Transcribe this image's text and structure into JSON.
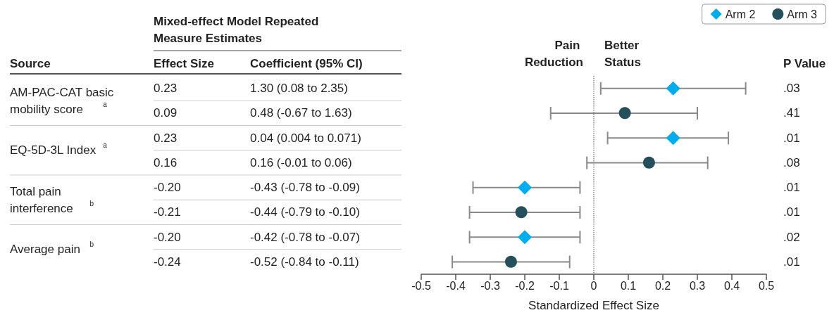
{
  "chart_data": {
    "type": "scatter",
    "orientation": "horizontal",
    "categories": [
      null,
      null,
      null,
      null,
      null,
      null,
      null,
      null
    ],
    "series": [
      {
        "name": "Arm 2",
        "color": "#00aeef",
        "marker": "diamond",
        "values": [
          0.23,
          null,
          0.23,
          null,
          -0.2,
          null,
          -0.2,
          null
        ],
        "errors": [
          [
            0.02,
            0.44
          ],
          null,
          [
            0.04,
            0.39
          ],
          null,
          [
            -0.35,
            -0.04
          ],
          null,
          [
            -0.36,
            -0.04
          ],
          null
        ]
      },
      {
        "name": "Arm 3",
        "color": "#24505c",
        "marker": "circle",
        "values": [
          null,
          0.09,
          null,
          0.16,
          null,
          -0.21,
          null,
          -0.24
        ],
        "errors": [
          null,
          [
            -0.125,
            0.3
          ],
          null,
          [
            -0.02,
            0.33
          ],
          null,
          [
            -0.36,
            -0.04
          ],
          null,
          [
            -0.41,
            -0.07
          ]
        ]
      }
    ],
    "xlim": [
      -0.5,
      0.5
    ],
    "xticks": [
      -0.5,
      -0.4,
      -0.3,
      -0.2,
      -0.1,
      0,
      0.1,
      0.2,
      0.3,
      0.4,
      0.5
    ],
    "xlabel": "Standardized Effect Size",
    "ref_lines": [
      {
        "axis": "x",
        "value": 0,
        "line_style": "dotted",
        "color": "#888888"
      }
    ],
    "legend": "top right",
    "grid": false,
    "annotations": [
      "Mixed-effect Model Repeated Measure Estimates",
      "Source",
      "Effect Size",
      "Coefficient (95% CI)",
      "Pain Reduction",
      "Better Status",
      "P Value",
      "0.23",
      "0.09",
      "0.23",
      "0.16",
      "-0.20",
      "-0.21",
      "-0.20",
      "-0.24",
      "1.30 (0.08 to 2.35)",
      "0.48 (-0.67 to 1.63)",
      "0.04 (0.004 to 0.071)",
      "0.16 (-0.01 to 0.06)",
      "-0.43 (-0.78 to -0.09)",
      "-0.44 (-0.79 to -0.10)",
      "-0.42 (-0.78 to -0.07)",
      "-0.52 (-0.84 to -0.11)",
      ".03",
      ".41",
      ".01",
      ".08",
      ".01",
      ".01",
      ".02",
      ".01",
      "AM-PAC-CAT basic mobility score$^{a}$",
      "EQ-5D-3L Index$^{a}$",
      "Total pain interference$^{b}$",
      "Average pain$^{b}$"
    ]
  }
}
